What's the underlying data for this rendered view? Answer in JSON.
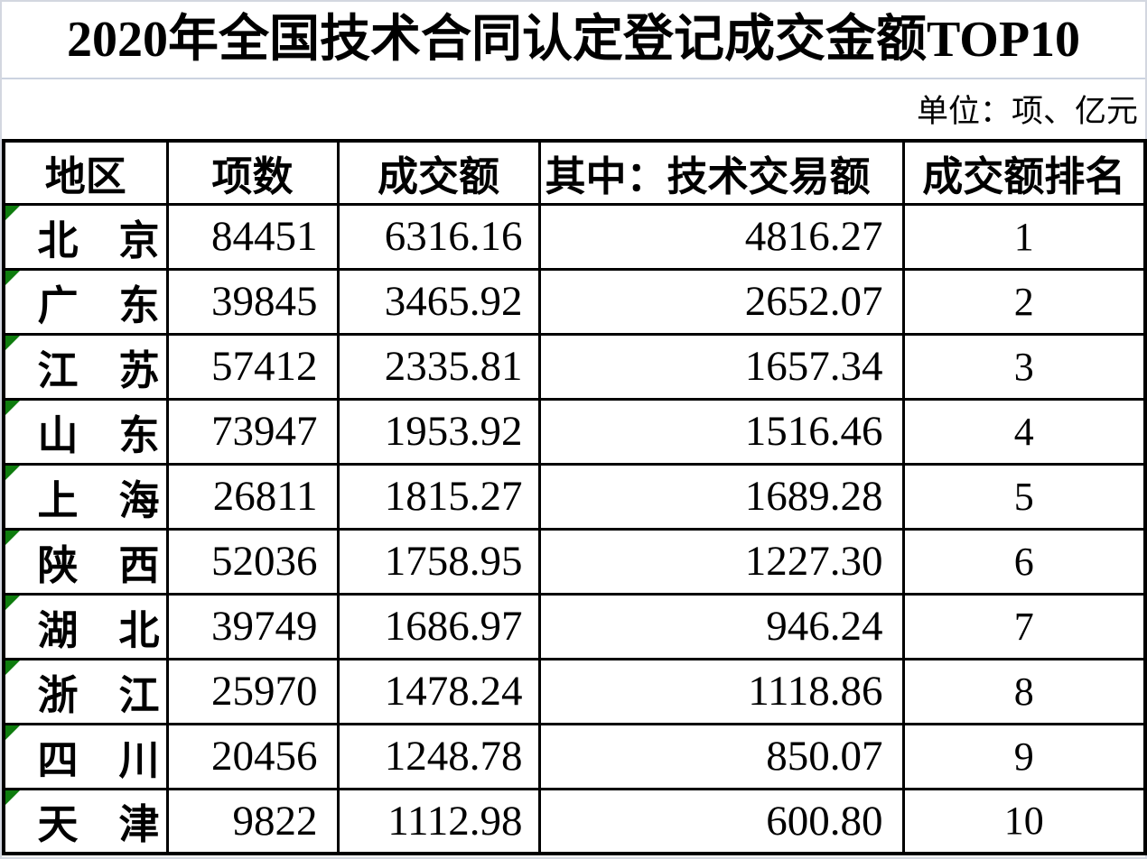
{
  "page": {
    "title": "2020年全国技术合同认定登记成交金额TOP10",
    "unit_note": "单位：项、亿元"
  },
  "colors": {
    "corner_indicator": "#0e7c0e",
    "table_border": "#000000",
    "title_gridline": "#ccd3e0"
  },
  "chart_data": {
    "type": "table",
    "title": "2020年全国技术合同认定登记成交金额TOP10",
    "unit": "单位：项、亿元",
    "columns": [
      "地区",
      "项数",
      "成交额",
      "其中：技术交易额",
      "成交额排名"
    ],
    "rows": [
      {
        "region": "北　京",
        "items": "84451",
        "amount": "6316.16",
        "tech_amount": "4816.27",
        "rank": "1"
      },
      {
        "region": "广　东",
        "items": "39845",
        "amount": "3465.92",
        "tech_amount": "2652.07",
        "rank": "2"
      },
      {
        "region": "江　苏",
        "items": "57412",
        "amount": "2335.81",
        "tech_amount": "1657.34",
        "rank": "3"
      },
      {
        "region": "山　东",
        "items": "73947",
        "amount": "1953.92",
        "tech_amount": "1516.46",
        "rank": "4"
      },
      {
        "region": "上　海",
        "items": "26811",
        "amount": "1815.27",
        "tech_amount": "1689.28",
        "rank": "5"
      },
      {
        "region": "陕　西",
        "items": "52036",
        "amount": "1758.95",
        "tech_amount": "1227.30",
        "rank": "6"
      },
      {
        "region": "湖　北",
        "items": "39749",
        "amount": "1686.97",
        "tech_amount": "946.24",
        "rank": "7"
      },
      {
        "region": "浙　江",
        "items": "25970",
        "amount": "1478.24",
        "tech_amount": "1118.86",
        "rank": "8"
      },
      {
        "region": "四　川",
        "items": "20456",
        "amount": "1248.78",
        "tech_amount": "850.07",
        "rank": "9"
      },
      {
        "region": "天　津",
        "items": "9822",
        "amount": "1112.98",
        "tech_amount": "600.80",
        "rank": "10"
      }
    ]
  }
}
